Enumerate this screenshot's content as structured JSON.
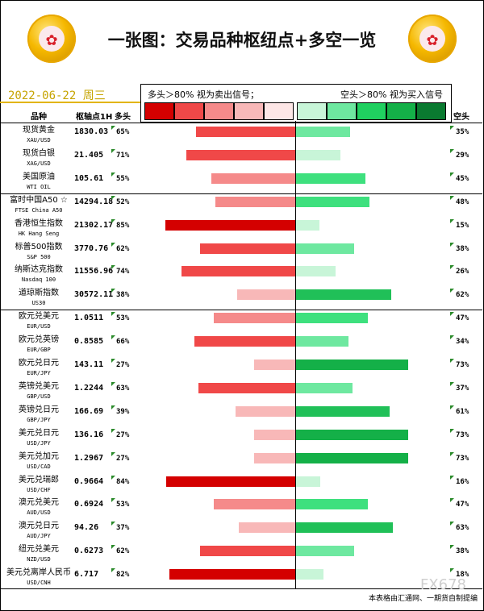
{
  "title": "一张图：交易品种枢纽点+多空一览",
  "date": "2022-06-22  周三",
  "legend": {
    "left_text": "多头＞80% 视为卖出信号；",
    "right_text": "空头＞80% 视为买入信号",
    "red_swatches": [
      "#d40000",
      "#f04848",
      "#f58a8a",
      "#f8b8b8",
      "#fde6e6"
    ],
    "green_swatches": [
      "#c8f5d8",
      "#6ee8a0",
      "#20d060",
      "#14b048",
      "#0a7a30"
    ]
  },
  "headers": {
    "name": "品种",
    "pivot": "枢轴点1H",
    "long": "多头",
    "short": "空头"
  },
  "chart_data": {
    "type": "bar",
    "categories": [
      {
        "name": "现货黄金",
        "code": "XAU/USD"
      },
      {
        "name": "现货白银",
        "code": "XAG/USD"
      },
      {
        "name": "美国原油",
        "code": "WTI OIL"
      },
      {
        "name": "富时中国A50 ☆",
        "code": "FTSE China A50"
      },
      {
        "name": "香港恒生指数",
        "code": "HK Hang Seng"
      },
      {
        "name": "标普500指数",
        "code": "S&P 500"
      },
      {
        "name": "纳斯达克指数",
        "code": "Nasdaq 100"
      },
      {
        "name": "道琼斯指数",
        "code": "US30"
      },
      {
        "name": "欧元兑美元",
        "code": "EUR/USD"
      },
      {
        "name": "欧元兑英镑",
        "code": "EUR/GBP"
      },
      {
        "name": "欧元兑日元",
        "code": "EUR/JPY"
      },
      {
        "name": "英镑兑美元",
        "code": "GBP/USD"
      },
      {
        "name": "英镑兑日元",
        "code": "GBP/JPY"
      },
      {
        "name": "美元兑日元",
        "code": "USD/JPY"
      },
      {
        "name": "美元兑加元",
        "code": "USD/CAD"
      },
      {
        "name": "美元兑瑞郎",
        "code": "USD/CHF"
      },
      {
        "name": "澳元兑美元",
        "code": "AUD/USD"
      },
      {
        "name": "澳元兑日元",
        "code": "AUD/JPY"
      },
      {
        "name": "纽元兑美元",
        "code": "NZD/USD"
      },
      {
        "name": "美元兑离岸人民币",
        "code": "USD/CNH"
      }
    ],
    "pivot": [
      "1830.03",
      "21.405",
      "105.61",
      "14294.18",
      "21302.17",
      "3770.76",
      "11556.96",
      "30572.11",
      "1.0511",
      "0.8585",
      "143.11",
      "1.2244",
      "166.69",
      "136.16",
      "1.2967",
      "0.9664",
      "0.6924",
      "94.26",
      "0.6273",
      "6.717"
    ],
    "series": [
      {
        "name": "多头",
        "values": [
          65,
          71,
          55,
          52,
          85,
          62,
          74,
          38,
          53,
          66,
          27,
          63,
          39,
          27,
          27,
          84,
          53,
          37,
          62,
          82
        ]
      },
      {
        "name": "空头",
        "values": [
          35,
          29,
          45,
          48,
          15,
          38,
          26,
          62,
          47,
          34,
          73,
          37,
          61,
          73,
          73,
          16,
          47,
          63,
          38,
          18
        ]
      }
    ],
    "pct_labels_long": [
      "65%",
      "71%",
      "55%",
      "52%",
      "85%",
      "62%",
      "74%",
      "38%",
      "53%",
      "66%",
      "27%",
      "63%",
      "39%",
      "27%",
      "27%",
      "84%",
      "53%",
      "37%",
      "62%",
      "82%"
    ],
    "pct_labels_short": [
      "35%",
      "29%",
      "45%",
      "48%",
      "15%",
      "38%",
      "26%",
      "62%",
      "47%",
      "34%",
      "73%",
      "37%",
      "61%",
      "73%",
      "73%",
      "16%",
      "47%",
      "63%",
      "38%",
      "18%"
    ],
    "xlim": [
      0,
      100
    ],
    "group_breaks_after": [
      2,
      7
    ]
  },
  "footer": "本表格由汇通网、一期货自制提编",
  "watermark": "FX678"
}
